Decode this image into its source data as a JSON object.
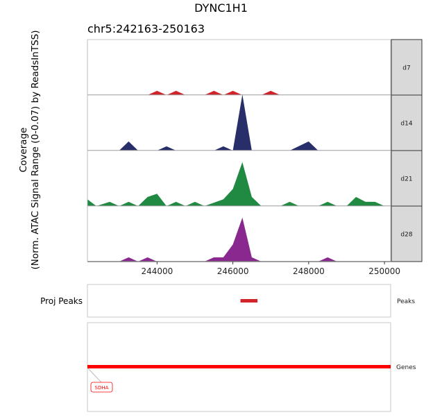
{
  "title": "DYNC1H1",
  "region": "chr5:242163-250163",
  "ylabel_line1": "Coverage",
  "ylabel_line2": "(Norm. ATAC Signal Range (0-0.07) by ReadsInTSS)",
  "colors": {
    "d7": "#d2232a",
    "d14": "#272e6a",
    "d21": "#208a42",
    "d28": "#89288f",
    "peak": "#d2232a",
    "gene": "#ff0000"
  },
  "chart_data": {
    "type": "area",
    "xlim": [
      242163,
      250163
    ],
    "x_ticks": [
      244000,
      246000,
      248000,
      250000
    ],
    "x_tick_labels": [
      "244000",
      "246000",
      "248000",
      "250000"
    ],
    "ylim": [
      0,
      0.07
    ],
    "tracks": [
      {
        "name": "d7",
        "points": [
          [
            243750,
            0
          ],
          [
            244000,
            0.0053
          ],
          [
            244250,
            0
          ],
          [
            244500,
            0.0053
          ],
          [
            244750,
            0
          ],
          [
            245250,
            0
          ],
          [
            245500,
            0.0053
          ],
          [
            245750,
            0
          ],
          [
            246000,
            0.0053
          ],
          [
            246250,
            0
          ],
          [
            246750,
            0
          ],
          [
            247000,
            0.0053
          ],
          [
            247250,
            0
          ]
        ]
      },
      {
        "name": "d14",
        "points": [
          [
            242163,
            0
          ],
          [
            243000,
            0
          ],
          [
            243250,
            0.0115
          ],
          [
            243500,
            0
          ],
          [
            244000,
            0
          ],
          [
            244250,
            0.0053
          ],
          [
            244500,
            0
          ],
          [
            245500,
            0
          ],
          [
            245750,
            0.0053
          ],
          [
            246000,
            0
          ],
          [
            246250,
            0.0707
          ],
          [
            246500,
            0
          ],
          [
            247500,
            0
          ],
          [
            248000,
            0.0115
          ],
          [
            248250,
            0
          ]
        ]
      },
      {
        "name": "d21",
        "points": [
          [
            242163,
            0.0085
          ],
          [
            242400,
            0
          ],
          [
            242750,
            0.0053
          ],
          [
            243000,
            0
          ],
          [
            243250,
            0.0053
          ],
          [
            243500,
            0
          ],
          [
            243750,
            0.0115
          ],
          [
            244000,
            0.0155
          ],
          [
            244250,
            0
          ],
          [
            244500,
            0.0053
          ],
          [
            244750,
            0
          ],
          [
            245000,
            0.0053
          ],
          [
            245250,
            0
          ],
          [
            245750,
            0.0085
          ],
          [
            246000,
            0.0215
          ],
          [
            246250,
            0.0555
          ],
          [
            246500,
            0.0115
          ],
          [
            246750,
            0
          ],
          [
            247250,
            0
          ],
          [
            247500,
            0.0053
          ],
          [
            247750,
            0
          ],
          [
            248250,
            0
          ],
          [
            248500,
            0.0053
          ],
          [
            248750,
            0
          ],
          [
            249000,
            0
          ],
          [
            249250,
            0.0115
          ],
          [
            249500,
            0.0053
          ],
          [
            249750,
            0.0053
          ],
          [
            250000,
            0
          ]
        ]
      },
      {
        "name": "d28",
        "points": [
          [
            243000,
            0
          ],
          [
            243250,
            0.0053
          ],
          [
            243500,
            0
          ],
          [
            243750,
            0.0053
          ],
          [
            244000,
            0
          ],
          [
            245250,
            0
          ],
          [
            245500,
            0.0053
          ],
          [
            245750,
            0.0053
          ],
          [
            246000,
            0.0215
          ],
          [
            246250,
            0.0555
          ],
          [
            246500,
            0.0053
          ],
          [
            246750,
            0
          ],
          [
            248250,
            0
          ],
          [
            248500,
            0.0053
          ],
          [
            248750,
            0
          ]
        ]
      }
    ],
    "peaks": [
      [
        246200,
        246650
      ]
    ],
    "genes": [
      {
        "name": "SDHA",
        "start": 242163,
        "end": 250163
      }
    ]
  },
  "proj_peaks_label": "Proj Peaks",
  "peaks_strip": "Peaks",
  "genes_strip": "Genes",
  "gene_label": "SDHA"
}
